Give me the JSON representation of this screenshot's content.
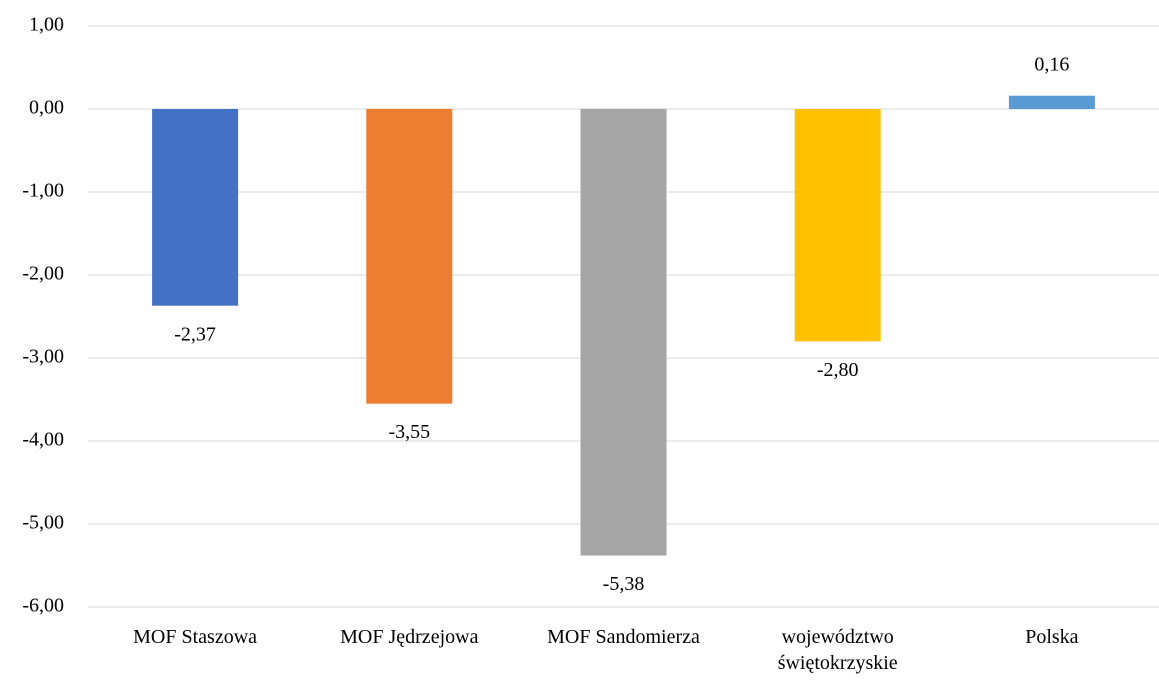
{
  "chart_data": {
    "type": "bar",
    "categories": [
      "MOF Staszowa",
      "MOF Jędrzejowa",
      "MOF Sandomierza",
      "województwo świętokrzyskie",
      "Polska"
    ],
    "values": [
      -2.37,
      -3.55,
      -5.38,
      -2.8,
      0.16
    ],
    "value_labels": [
      "-2,37",
      "-3,55",
      "-5,38",
      "-2,80",
      "0,16"
    ],
    "colors": [
      "#4472c4",
      "#ed7d31",
      "#a5a5a5",
      "#ffc000",
      "#5b9bd5"
    ],
    "ylim": [
      -6,
      1
    ],
    "yticks": [
      {
        "value": -6,
        "label": "-6,00"
      },
      {
        "value": -5,
        "label": "-5,00"
      },
      {
        "value": -4,
        "label": "-4,00"
      },
      {
        "value": -3,
        "label": "-3,00"
      },
      {
        "value": -2,
        "label": "-2,00"
      },
      {
        "value": -1,
        "label": "-1,00"
      },
      {
        "value": 0,
        "label": "0,00"
      },
      {
        "value": 1,
        "label": "1,00"
      }
    ],
    "grid": true
  }
}
